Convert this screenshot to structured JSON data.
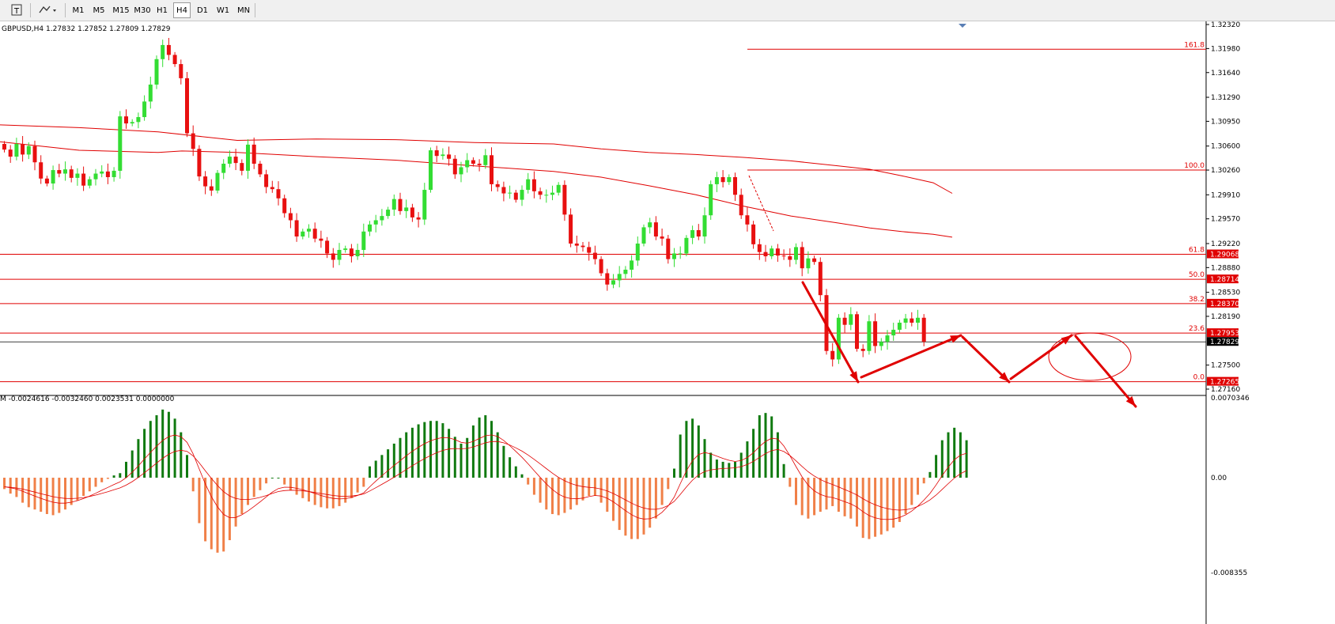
{
  "toolbar": {
    "timeframes": [
      "M1",
      "M5",
      "M15",
      "M30",
      "H1",
      "H4",
      "D1",
      "W1",
      "MN"
    ],
    "active": "H4",
    "icons": [
      "text-tool-icon",
      "shapes-tool-icon"
    ]
  },
  "chart_data": {
    "type": "candlestick",
    "symbol_line": "GBPUSD,H4  1.27832 1.27852 1.27809 1.27829",
    "price_axis": [
      "1.32320",
      "1.31980",
      "1.31640",
      "1.31290",
      "1.30950",
      "1.30600",
      "1.30260",
      "1.29910",
      "1.29570",
      "1.29220",
      "1.28880",
      "1.28530",
      "1.28190",
      "1.27500",
      "1.27160"
    ],
    "price_range": [
      1.2701,
      1.3232
    ],
    "current_price": "1.27829",
    "fib_levels": [
      {
        "level": "161.8",
        "price": 1.3197,
        "tag": ""
      },
      {
        "level": "100.0",
        "price": 1.3026,
        "tag": ""
      },
      {
        "level": "61.8",
        "price": 1.29068,
        "tag": "1.29068"
      },
      {
        "level": "50.0",
        "price": 1.28714,
        "tag": "1.28714"
      },
      {
        "level": "38.2",
        "price": 1.2837,
        "tag": "1.28370"
      },
      {
        "level": "23.6",
        "price": 1.27953,
        "tag": "1.27953"
      },
      {
        "level": "0.0",
        "price": 1.27265,
        "tag": "1.27265"
      }
    ],
    "closes": [
      1.3055,
      1.3045,
      1.3063,
      1.3048,
      1.306,
      1.3037,
      1.3014,
      1.3007,
      1.3026,
      1.3021,
      1.3027,
      1.3015,
      1.3021,
      1.3004,
      1.3013,
      1.3021,
      1.3024,
      1.3016,
      1.3025,
      1.3102,
      1.3092,
      1.3094,
      1.3101,
      1.3123,
      1.3147,
      1.3183,
      1.3203,
      1.3189,
      1.3176,
      1.3156,
      1.3078,
      1.3056,
      1.3017,
      1.3003,
      1.2997,
      1.3022,
      1.3035,
      1.3045,
      1.3036,
      1.3025,
      1.3062,
      1.3035,
      1.302,
      1.3002,
      1.2999,
      1.2986,
      1.2965,
      1.2955,
      1.2932,
      1.2939,
      1.2943,
      1.2929,
      1.2926,
      1.2908,
      1.2899,
      1.2913,
      1.2915,
      1.2904,
      1.2913,
      1.2939,
      1.2949,
      1.2955,
      1.2961,
      1.297,
      1.2985,
      1.2968,
      1.2973,
      1.2959,
      1.2956,
      1.2998,
      1.3054,
      1.3046,
      1.3048,
      1.3042,
      1.302,
      1.303,
      1.304,
      1.3035,
      1.3033,
      1.3047,
      1.3006,
      1.3002,
      1.2993,
      1.2994,
      1.2984,
      1.2998,
      1.3013,
      1.2996,
      1.2991,
      1.2991,
      1.2994,
      1.3005,
      1.2963,
      1.2922,
      1.2919,
      1.2917,
      1.2909,
      1.29,
      1.288,
      1.2864,
      1.287,
      1.2879,
      1.2885,
      1.2898,
      1.2922,
      1.2945,
      1.2952,
      1.2932,
      1.2929,
      1.29,
      1.2908,
      1.2908,
      1.293,
      1.2941,
      1.2932,
      1.2962,
      1.3006,
      1.3016,
      1.3009,
      1.3016,
      1.2991,
      1.2962,
      1.2949,
      1.2921,
      1.291,
      1.2904,
      1.2915,
      1.2905,
      1.2904,
      1.2899,
      1.2917,
      1.2887,
      1.2901,
      1.2896,
      1.2849,
      1.277,
      1.2758,
      1.2817,
      1.2807,
      1.2822,
      1.2773,
      1.277,
      1.2812,
      1.2777,
      1.2783,
      1.2792,
      1.28,
      1.281,
      1.2816,
      1.281,
      1.2817,
      1.2783
    ],
    "ma_upper": {
      "from": [
        1.309,
        1.3086,
        1.308,
        1.3068,
        1.307,
        1.3069,
        1.3065,
        1.3063,
        1.3056,
        1.3051,
        1.3048,
        1.3044,
        1.3039,
        1.3032,
        1.3027,
        1.3018,
        1.3008,
        1.2993
      ],
      "x": [
        0,
        100,
        200,
        300,
        400,
        500,
        600,
        700,
        760,
        820,
        880,
        940,
        1000,
        1060,
        1100,
        1140,
        1180,
        1204
      ]
    },
    "ma_lower": {
      "x": [
        0,
        100,
        200,
        230,
        300,
        400,
        500,
        600,
        700,
        760,
        820,
        880,
        940,
        1000,
        1060,
        1100,
        1140,
        1180,
        1204
      ],
      "y": [
        1.3066,
        1.3054,
        1.3051,
        1.3053,
        1.3051,
        1.3045,
        1.304,
        1.3032,
        1.3024,
        1.3016,
        1.3004,
        1.2991,
        1.2975,
        1.2961,
        1.2951,
        1.2944,
        1.2939,
        1.2935,
        1.2931
      ]
    },
    "macd_line": "M -0.0024616 -0.0032460 0.0023531 0.0000000",
    "macd_axis": [
      "0.0070346",
      "0.00",
      "-0.008355"
    ],
    "macd_range": [
      -0.008355,
      0.0070346
    ],
    "macd_hist": [
      -0.001,
      -0.0014,
      -0.0017,
      -0.0022,
      -0.0026,
      -0.0028,
      -0.003,
      -0.0032,
      -0.0033,
      -0.0031,
      -0.0028,
      -0.0024,
      -0.002,
      -0.0016,
      -0.0012,
      -0.0008,
      -0.0004,
      -0.0001,
      0.0002,
      0.0004,
      0.0014,
      0.0024,
      0.0034,
      0.0043,
      0.005,
      0.0055,
      0.006,
      0.0058,
      0.0052,
      0.004,
      0.002,
      -0.0012,
      -0.004,
      -0.0056,
      -0.0063,
      -0.0066,
      -0.0065,
      -0.0055,
      -0.0043,
      -0.0032,
      -0.0024,
      -0.0017,
      -0.0011,
      -0.0005,
      0,
      0,
      -0.0006,
      -0.0011,
      -0.0015,
      -0.0018,
      -0.0021,
      -0.0024,
      -0.0026,
      -0.0027,
      -0.0027,
      -0.0025,
      -0.0022,
      -0.0018,
      -0.0013,
      -0.0008,
      0.001,
      0.0015,
      0.002,
      0.0025,
      0.003,
      0.0035,
      0.004,
      0.0044,
      0.0047,
      0.0049,
      0.005,
      0.005,
      0.0048,
      0.0043,
      0.0036,
      0.003,
      0.0035,
      0.0046,
      0.0053,
      0.0055,
      0.005,
      0.004,
      0.0028,
      0.0018,
      0.001,
      0.0003,
      -0.0006,
      -0.0015,
      -0.0022,
      -0.0028,
      -0.0032,
      -0.0033,
      -0.0031,
      -0.0028,
      -0.0024,
      -0.002,
      -0.0016,
      -0.0016,
      -0.0022,
      -0.003,
      -0.0038,
      -0.0046,
      -0.0051,
      -0.0054,
      -0.0054,
      -0.005,
      -0.0044,
      -0.0036,
      -0.0024,
      -0.001,
      0.0008,
      0.0038,
      0.005,
      0.0052,
      0.0046,
      0.0034,
      0.0022,
      0.0016,
      0.0014,
      0.0013,
      0.0014,
      0.0022,
      0.0032,
      0.0043,
      0.0055,
      0.0057,
      0.0054,
      0.004,
      0.0012,
      -0.0008,
      -0.0024,
      -0.0033,
      -0.0036,
      -0.0033,
      -0.003,
      -0.0028,
      -0.0025,
      -0.003,
      -0.0034,
      -0.0036,
      -0.0043,
      -0.0053,
      -0.0054,
      -0.0052,
      -0.005,
      -0.0047,
      -0.0044,
      -0.0039,
      -0.0032,
      -0.0024,
      -0.0015,
      -0.0005,
      0.0005,
      0.002,
      0.0033,
      0.004,
      0.0044,
      0.004,
      0.0033
    ]
  }
}
